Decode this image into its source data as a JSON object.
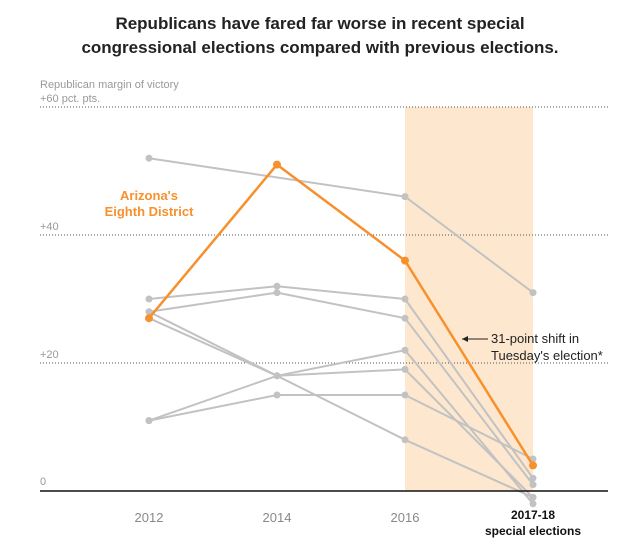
{
  "title_lines": [
    "Republicans have fared far worse in recent special",
    "congressional elections compared with previous elections."
  ],
  "colors": {
    "highlight": "#f7902d",
    "other": "#c2c2c2",
    "shade": "#fde8cf",
    "gridline": "#555555",
    "baseline": "#111111"
  },
  "chart_data": {
    "type": "line",
    "title": "Republicans have fared far worse in recent special congressional elections compared with previous elections.",
    "ylabel": "Republican margin of victory",
    "x": [
      "2012",
      "2014",
      "2016",
      "2017-18"
    ],
    "x_tick_labels": [
      "2012",
      "2014",
      "2016",
      "2017-18",
      "special elections"
    ],
    "ylim": [
      0,
      60
    ],
    "y_ticks": [
      0,
      20,
      40,
      60
    ],
    "y_tick_labels": [
      "0",
      "+20",
      "+40",
      "+60 pct. pts."
    ],
    "shaded_period": "2017-18",
    "highlight_series": "Arizona's Eighth District",
    "series": [
      {
        "name": "Arizona's Eighth District",
        "highlight": true,
        "values": [
          27,
          51,
          36,
          4
        ]
      },
      {
        "values": [
          52,
          null,
          46,
          31
        ]
      },
      {
        "values": [
          30,
          32,
          30,
          2
        ]
      },
      {
        "values": [
          28,
          31,
          27,
          1
        ]
      },
      {
        "values": [
          27,
          18,
          22,
          -2
        ]
      },
      {
        "values": [
          11,
          18,
          19,
          -1
        ]
      },
      {
        "values": [
          11,
          15,
          15,
          5
        ]
      },
      {
        "values": [
          28,
          null,
          8,
          -1
        ]
      }
    ],
    "legend_label_lines": [
      "Arizona's",
      "Eighth District"
    ],
    "annotation_lines": [
      "31-point shift in",
      "Tuesday's election*"
    ]
  }
}
